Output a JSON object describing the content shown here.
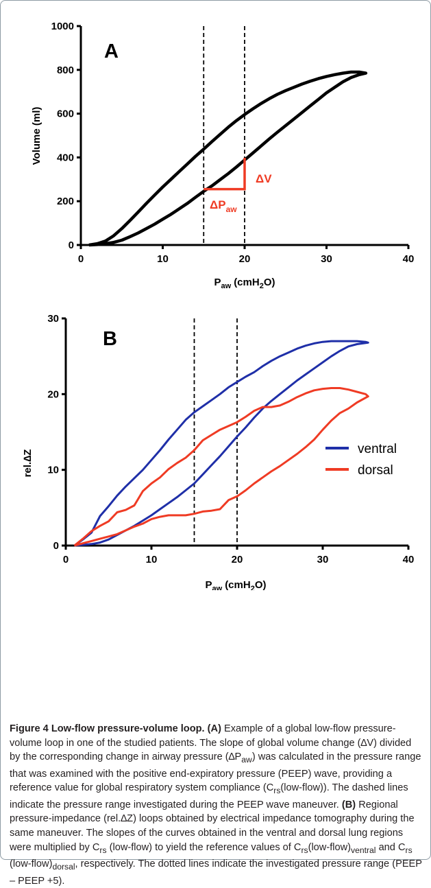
{
  "panels": {
    "a": {
      "label": "A",
      "delta_v": "ΔV",
      "delta_p": "ΔP",
      "delta_p_sub": "aw"
    },
    "b": {
      "label": "B"
    }
  },
  "chart_data": [
    {
      "type": "line",
      "panel": "A",
      "xlabel": "P",
      "xlabel_sub": "aw",
      "xlabel_unit": "(cmH",
      "xlabel_unit_sub": "2",
      "xlabel_unit_end": "O)",
      "ylabel": "Volume (ml)",
      "xlim": [
        0,
        40
      ],
      "ylim": [
        0,
        1000
      ],
      "xticks": [
        "0",
        "10",
        "20",
        "30",
        "40"
      ],
      "yticks": [
        "0",
        "200",
        "400",
        "600",
        "800",
        "1000"
      ],
      "xtick_values": [
        0,
        10,
        20,
        30,
        40
      ],
      "ytick_values": [
        0,
        200,
        400,
        600,
        800,
        1000
      ],
      "grid": false,
      "dashed_lines_x": [
        15,
        20
      ],
      "series": [
        {
          "color": "#000000",
          "x": [
            1.0,
            2,
            3,
            4,
            5,
            6,
            7,
            8,
            9,
            10,
            11,
            12,
            13,
            14,
            15,
            16,
            17,
            18,
            19,
            20,
            21,
            22,
            23,
            24,
            25,
            26,
            27,
            28,
            29,
            30,
            31,
            32,
            33,
            34,
            34.8,
            34,
            33,
            32,
            31,
            30,
            29,
            28,
            27,
            26,
            25,
            24,
            23,
            22,
            21,
            20,
            19,
            18,
            17,
            16,
            15,
            14,
            13,
            12,
            11,
            10,
            9,
            8,
            7,
            6,
            5,
            4,
            3,
            2,
            1.0
          ],
          "y": [
            0,
            2,
            6,
            12,
            22,
            38,
            55,
            75,
            95,
            118,
            140,
            165,
            190,
            218,
            245,
            270,
            298,
            326,
            356,
            388,
            420,
            452,
            484,
            515,
            545,
            575,
            605,
            635,
            665,
            695,
            720,
            745,
            765,
            778,
            785,
            790,
            790,
            785,
            778,
            770,
            760,
            748,
            735,
            720,
            705,
            688,
            668,
            646,
            622,
            596,
            568,
            538,
            505,
            472,
            438,
            405,
            370,
            335,
            300,
            265,
            228,
            190,
            150,
            112,
            75,
            42,
            18,
            6,
            0
          ]
        }
      ]
    },
    {
      "type": "line",
      "panel": "B",
      "xlabel": "P",
      "xlabel_sub": "aw",
      "xlabel_unit": "(cmH",
      "xlabel_unit_sub": "2",
      "xlabel_unit_end": "O)",
      "ylabel": "rel.∆Z",
      "xlim": [
        0,
        40
      ],
      "ylim": [
        0,
        30
      ],
      "xticks": [
        "0",
        "10",
        "20",
        "30",
        "40"
      ],
      "yticks": [
        "0",
        "10",
        "20",
        "30"
      ],
      "xtick_values": [
        0,
        10,
        20,
        30,
        40
      ],
      "ytick_values": [
        0,
        10,
        20,
        30
      ],
      "grid": false,
      "legend": "right",
      "dashed_lines_x": [
        15,
        20
      ],
      "series": [
        {
          "name": "ventral",
          "color": "#1f2fa8",
          "x": [
            1.0,
            2,
            3,
            4,
            5,
            6,
            7,
            8,
            9,
            10,
            11,
            12,
            13,
            14,
            15,
            16,
            17,
            18,
            19,
            20,
            21,
            22,
            23,
            24,
            25,
            26,
            27,
            28,
            29,
            30,
            31,
            32,
            33,
            34,
            35.3,
            35,
            34,
            33,
            32,
            31,
            30,
            29,
            28,
            27,
            26,
            25,
            24,
            23,
            22,
            21,
            20,
            19,
            18,
            17,
            16,
            15,
            14,
            13,
            12,
            11,
            10,
            9,
            8,
            7,
            6,
            5,
            4,
            3,
            2,
            1.0
          ],
          "y": [
            0,
            0.1,
            0.2,
            0.4,
            0.8,
            1.4,
            2.0,
            2.6,
            3.3,
            4.0,
            4.8,
            5.6,
            6.4,
            7.3,
            8.2,
            9.4,
            10.6,
            11.8,
            13.1,
            14.4,
            15.6,
            16.9,
            18.1,
            19.1,
            20.0,
            20.9,
            21.8,
            22.6,
            23.4,
            24.2,
            25.0,
            25.7,
            26.3,
            26.6,
            26.8,
            26.9,
            27.0,
            27.0,
            27.0,
            27.0,
            26.9,
            26.7,
            26.4,
            26.0,
            25.5,
            25.0,
            24.4,
            23.7,
            22.9,
            22.3,
            21.6,
            20.9,
            20.0,
            19.2,
            18.4,
            17.6,
            16.6,
            15.3,
            14.0,
            12.6,
            11.3,
            10.0,
            8.9,
            7.8,
            6.6,
            5.2,
            3.9,
            1.7,
            0.8,
            0.0
          ]
        },
        {
          "name": "dorsal",
          "color": "#ef3b24",
          "x": [
            1.0,
            2,
            3,
            4,
            5,
            6,
            7,
            8,
            9,
            10,
            11,
            12,
            13,
            14,
            15,
            16,
            17,
            18,
            19,
            20,
            21,
            22,
            23,
            24,
            25,
            26,
            27,
            28,
            29,
            30,
            31,
            32,
            33,
            34,
            35.3,
            35,
            34,
            33,
            32,
            31,
            30,
            29,
            28,
            27,
            26,
            25,
            24,
            23,
            22,
            21,
            20,
            19,
            18,
            17,
            16,
            15,
            14,
            13,
            12,
            11,
            10,
            9,
            8,
            7,
            6,
            5,
            4,
            3,
            2,
            1.0
          ],
          "y": [
            0,
            0.3,
            0.6,
            0.9,
            1.2,
            1.5,
            2.0,
            2.5,
            2.9,
            3.5,
            3.8,
            4.0,
            4.0,
            4.0,
            4.2,
            4.5,
            4.6,
            4.8,
            6.0,
            6.5,
            7.3,
            8.2,
            9.0,
            9.8,
            10.5,
            11.3,
            12.1,
            13.0,
            14.0,
            15.3,
            16.5,
            17.5,
            18.1,
            18.9,
            19.7,
            20.0,
            20.3,
            20.6,
            20.8,
            20.8,
            20.7,
            20.5,
            20.1,
            19.6,
            19.0,
            18.5,
            18.3,
            18.3,
            17.8,
            17.0,
            16.3,
            15.8,
            15.3,
            14.6,
            13.9,
            12.6,
            11.6,
            10.9,
            10.1,
            9.0,
            8.2,
            7.2,
            5.3,
            4.7,
            4.4,
            3.2,
            2.6,
            1.9,
            0.9,
            0.0
          ]
        }
      ]
    }
  ],
  "caption": {
    "title": "Figure 4 Low-flow pressure-volume loop.",
    "a_label": "(A)",
    "text1": " Example of a global low-flow pressure-volume loop in one of the studied patients. The slope of global volume change (∆V) divided by the corresponding change in airway pressure (∆P",
    "sub1": "aw",
    "text2": ") was calculated in the pressure range that was examined with the positive end-expiratory pressure (PEEP) wave, providing a reference value for global respiratory system compliance (C",
    "sub2": "rs",
    "text3": "(low-flow)). The dashed lines indicate the pressure range investigated during the PEEP wave maneuver. ",
    "b_label": "(B)",
    "text4": " Regional pressure-impedance (rel.∆Z) loops obtained by electrical impedance tomography during the same maneuver. The slopes of the curves obtained in the ventral and dorsal lung regions were multiplied by C",
    "sub3": "rs",
    "text5": " (low-flow) to yield the reference values of C",
    "sub4": "rs",
    "text6": "(low-flow)",
    "sub5": "ventral",
    "text7": " and C",
    "sub6": "rs",
    "text8": " (low-flow)",
    "sub7": "dorsal",
    "text9": ", respectively. The dotted lines indicate the investigated pressure range (PEEP – PEEP +5)."
  }
}
